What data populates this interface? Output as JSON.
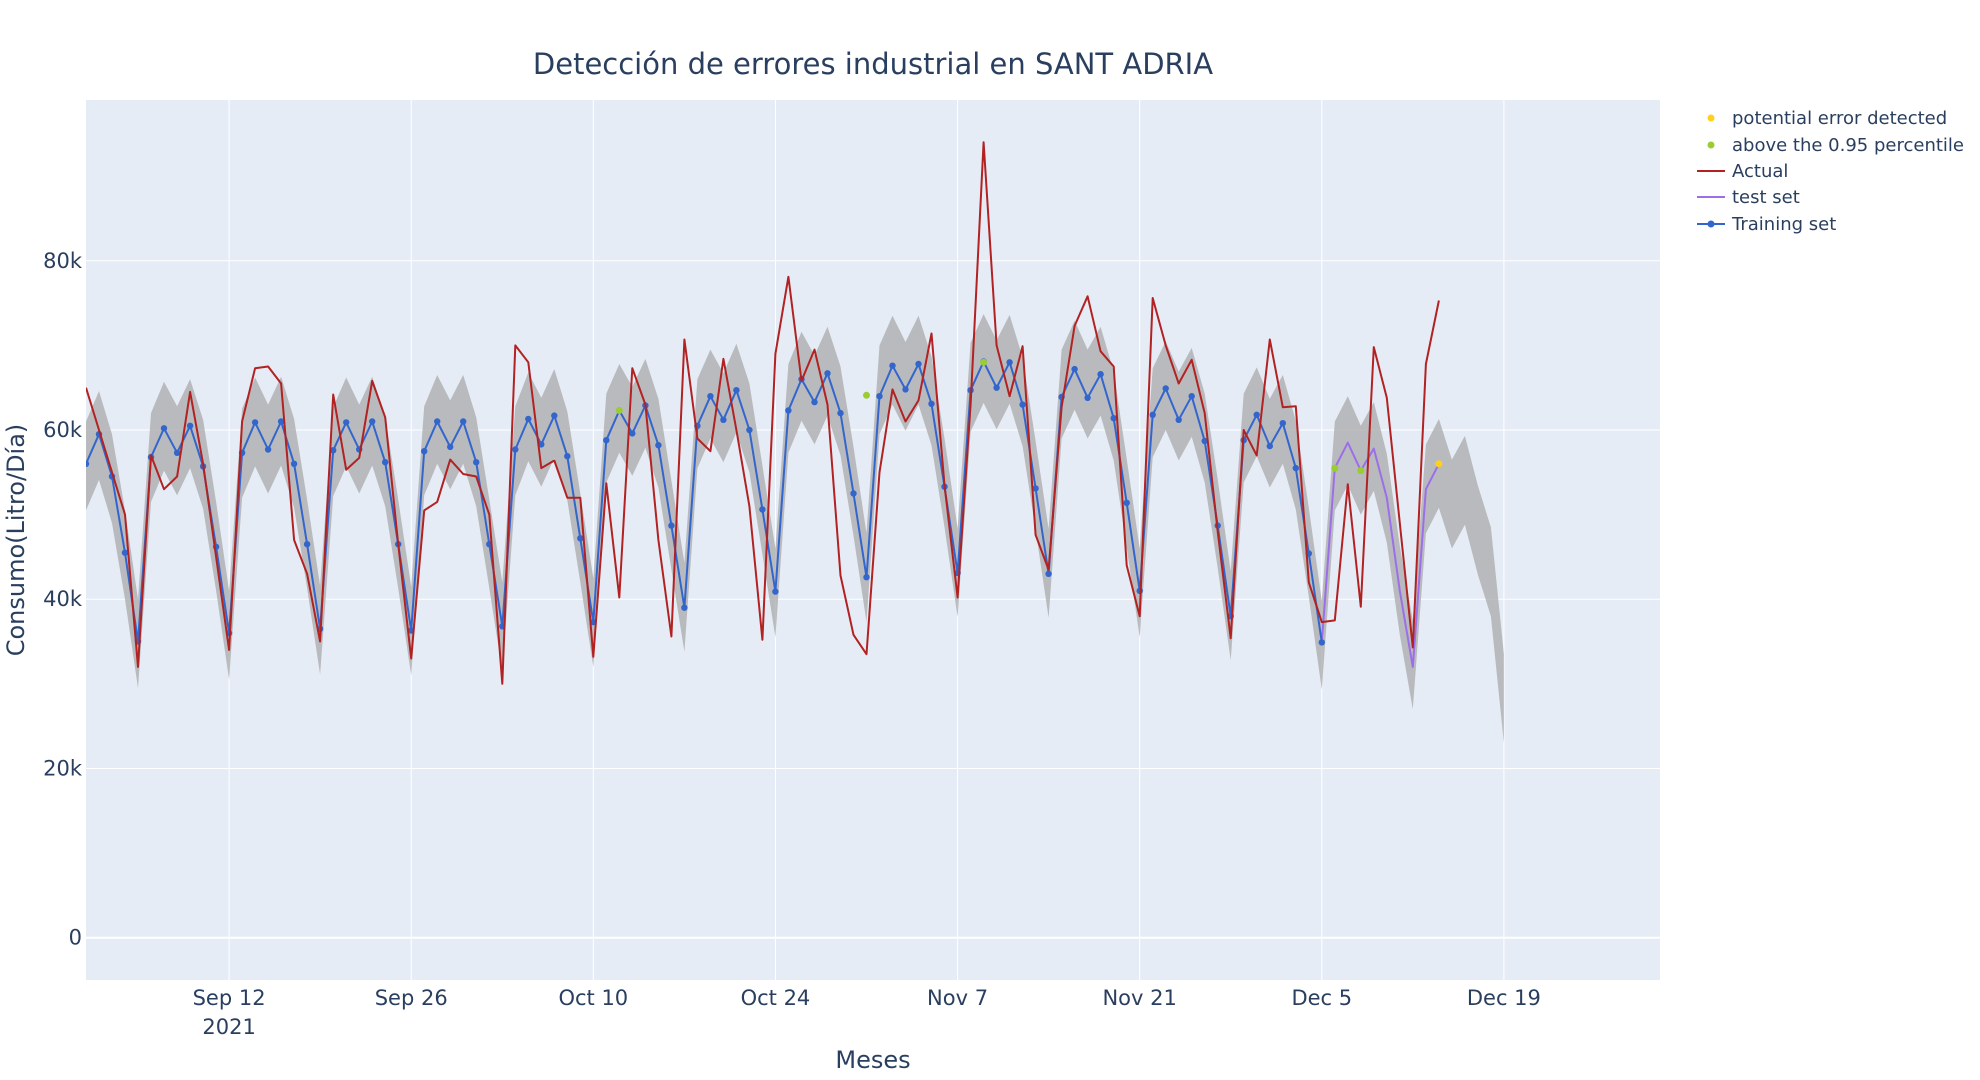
{
  "chart_data": {
    "type": "line",
    "title": "Detección de errores industrial en SANT ADRIA",
    "xlabel": "Meses",
    "ylabel": "Consumo(Litro/Día)",
    "x_ticks": [
      {
        "date": "2021-09-12",
        "label": "Sep 12",
        "sublabel": "2021"
      },
      {
        "date": "2021-09-26",
        "label": "Sep 26"
      },
      {
        "date": "2021-10-10",
        "label": "Oct 10"
      },
      {
        "date": "2021-10-24",
        "label": "Oct 24"
      },
      {
        "date": "2021-11-07",
        "label": "Nov 7"
      },
      {
        "date": "2021-11-21",
        "label": "Nov 21"
      },
      {
        "date": "2021-12-05",
        "label": "Dec 5"
      },
      {
        "date": "2021-12-19",
        "label": "Dec 19"
      }
    ],
    "xlim": [
      "2021-09-01",
      "2021-12-31"
    ],
    "y_ticks": [
      {
        "value": 0,
        "label": "0"
      },
      {
        "value": 20000,
        "label": "20k"
      },
      {
        "value": 40000,
        "label": "40k"
      },
      {
        "value": 60000,
        "label": "60k"
      },
      {
        "value": 80000,
        "label": "80k"
      }
    ],
    "ylim": [
      -5000,
      99000
    ],
    "grid": true,
    "legend_position": "top-right",
    "actual": {
      "name": "Actual",
      "color": "#b22222",
      "start": "2021-09-01",
      "values": [
        65000,
        60000,
        55000,
        50000,
        32000,
        57000,
        53000,
        54500,
        64500,
        56000,
        45000,
        34000,
        61000,
        67300,
        67500,
        65500,
        47000,
        43000,
        35000,
        64200,
        55300,
        56700,
        65800,
        61500,
        46500,
        33000,
        50500,
        51500,
        56500,
        54800,
        54500,
        50000,
        30000,
        70000,
        68000,
        55500,
        56400,
        52000,
        52000,
        33200,
        53700,
        40200,
        67300,
        63000,
        47000,
        35600,
        70700,
        59000,
        57500,
        68400,
        60000,
        51000,
        35200,
        69000,
        78100,
        65800,
        69500,
        63000,
        42800,
        35800,
        33500,
        55000,
        64800,
        61000,
        63500,
        71400,
        53500,
        40200,
        63000,
        94000,
        70000,
        64000,
        69900,
        47600,
        43500,
        62700,
        72300,
        75800,
        69300,
        67500,
        44000,
        38000,
        75600,
        70000,
        65500,
        68300,
        62000,
        48000,
        35400,
        60000,
        57000,
        70700,
        62700,
        62800,
        42000,
        37300,
        37500,
        53600,
        39100,
        69800,
        63800,
        49000,
        34300,
        67800,
        75300
      ]
    },
    "training": {
      "name": "Training set",
      "color": "#3366cc",
      "start": "2021-09-01",
      "values": [
        56000,
        59500,
        54500,
        45500,
        35000,
        56800,
        60200,
        57300,
        60500,
        55700,
        46200,
        36000,
        57300,
        60900,
        57700,
        61000,
        56000,
        46500,
        36500,
        57600,
        60900,
        57700,
        61000,
        56200,
        46500,
        36300,
        57500,
        61000,
        58000,
        61000,
        56200,
        46500,
        36800,
        57700,
        61300,
        58300,
        61700,
        56900,
        47200,
        37300,
        58800,
        62300,
        59600,
        62900,
        58200,
        48700,
        39000,
        60500,
        64000,
        61200,
        64700,
        60000,
        50600,
        40900,
        62300,
        66000,
        63300,
        66700,
        62000,
        52500,
        42600,
        64000,
        67600,
        64800,
        67800,
        63100,
        53300,
        43100,
        64700,
        68100,
        65000,
        68000,
        63000,
        53100,
        43000,
        63900,
        67200,
        63800,
        66600,
        61400,
        51400,
        41000,
        61800,
        64900,
        61200,
        64000,
        58700,
        48700,
        38000,
        58800,
        61800,
        58100,
        60800,
        55500,
        45400,
        34900
      ]
    },
    "test": {
      "name": "test set",
      "color": "#9b6fe8",
      "start": "2021-12-05",
      "values": [
        34900,
        55500,
        58500,
        55200,
        57800,
        52000,
        41000,
        32000,
        53000,
        56000
      ]
    },
    "band": {
      "start": "2021-09-01",
      "upper": [
        61000,
        64600,
        59500,
        50500,
        40000,
        62000,
        65700,
        62800,
        66000,
        61200,
        51500,
        41000,
        62500,
        66200,
        63000,
        66300,
        61300,
        51800,
        41600,
        62700,
        66200,
        63000,
        66300,
        61500,
        51800,
        41500,
        62800,
        66500,
        63500,
        66500,
        61500,
        51800,
        42000,
        62800,
        66800,
        63800,
        67200,
        62200,
        52500,
        42500,
        64300,
        67800,
        65100,
        68400,
        63700,
        54000,
        44300,
        66000,
        69500,
        66700,
        70200,
        65500,
        55800,
        46000,
        67800,
        71600,
        68800,
        72200,
        67500,
        58000,
        47800,
        70000,
        73500,
        70400,
        73500,
        68700,
        59000,
        48400,
        70300,
        73700,
        70600,
        73600,
        68600,
        58700,
        48300,
        69500,
        72900,
        69500,
        72200,
        66900,
        56600,
        46000,
        67300,
        70500,
        66900,
        69700,
        64300,
        54200,
        43300,
        64300,
        67400,
        63700,
        66500,
        61100,
        50800,
        39800,
        61000,
        64000,
        60500,
        63300,
        57200,
        46300,
        37500,
        58300,
        61300,
        56500,
        59300,
        53400,
        48500,
        33500
      ]
    }
  }
}
